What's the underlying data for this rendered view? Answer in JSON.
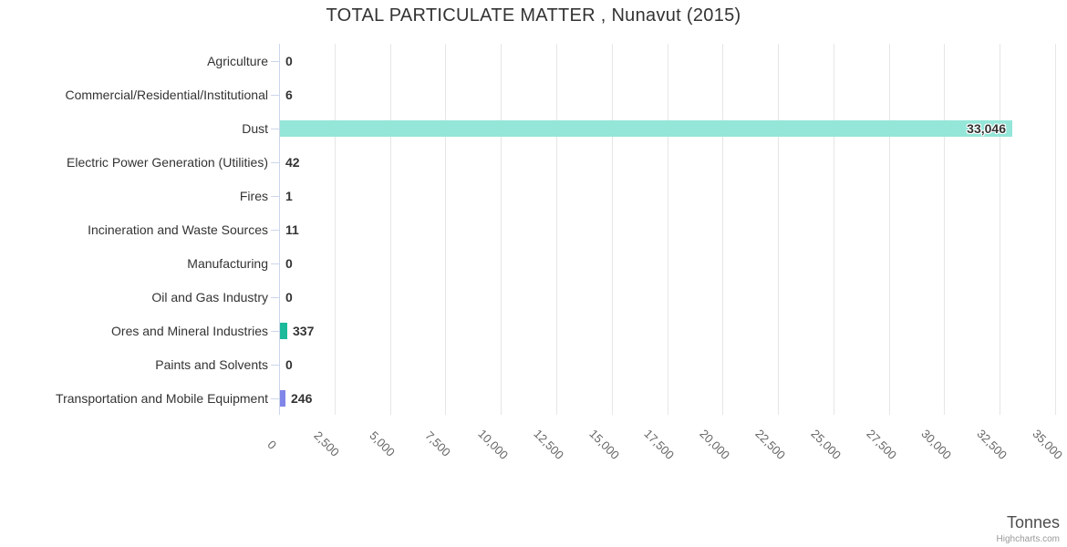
{
  "page": {
    "credit": "Highcharts.com"
  },
  "colors": {
    "grid": "#e6e6e6",
    "axis_line": "#ccd6eb",
    "label_text": "#333333",
    "tick_text": "#666666",
    "axis_title_text": "#4d4d4d",
    "credit_text": "#999999",
    "default_bar": "#7cb5ec",
    "dust_bar": "#94e6d8",
    "ores_bar": "#1cb99b",
    "transportation_bar": "#8085e9"
  },
  "chart_data": {
    "type": "bar",
    "orientation": "horizontal",
    "title": "TOTAL PARTICULATE MATTER , Nunavut (2015)",
    "xlabel": "Tonnes",
    "legend": false,
    "grid": true,
    "categories": [
      "Agriculture",
      "Commercial/Residential/Institutional",
      "Dust",
      "Electric Power Generation (Utilities)",
      "Fires",
      "Incineration and Waste Sources",
      "Manufacturing",
      "Oil and Gas Industry",
      "Ores and Mineral Industries",
      "Paints and Solvents",
      "Transportation and Mobile Equipment"
    ],
    "values": [
      0,
      6,
      33046,
      42,
      1,
      11,
      0,
      0,
      337,
      0,
      246
    ],
    "value_labels": [
      "0",
      "6",
      "33,046",
      "42",
      "1",
      "11",
      "0",
      "0",
      "337",
      "0",
      "246"
    ],
    "bar_colors": [
      null,
      null,
      "#94e6d8",
      null,
      null,
      null,
      null,
      null,
      "#1cb99b",
      null,
      "#8085e9"
    ],
    "axis": {
      "min": 0,
      "max": 35000,
      "tick_interval": 2500,
      "tick_values": [
        0,
        2500,
        5000,
        7500,
        10000,
        12500,
        15000,
        17500,
        20000,
        22500,
        25000,
        27500,
        30000,
        32500,
        35000
      ],
      "tick_labels": [
        "0",
        "2,500",
        "5,000",
        "7,500",
        "10,000",
        "12,500",
        "15,000",
        "17,500",
        "20,000",
        "22,500",
        "25,000",
        "27,500",
        "30,000",
        "32,500",
        "35,000"
      ]
    }
  }
}
